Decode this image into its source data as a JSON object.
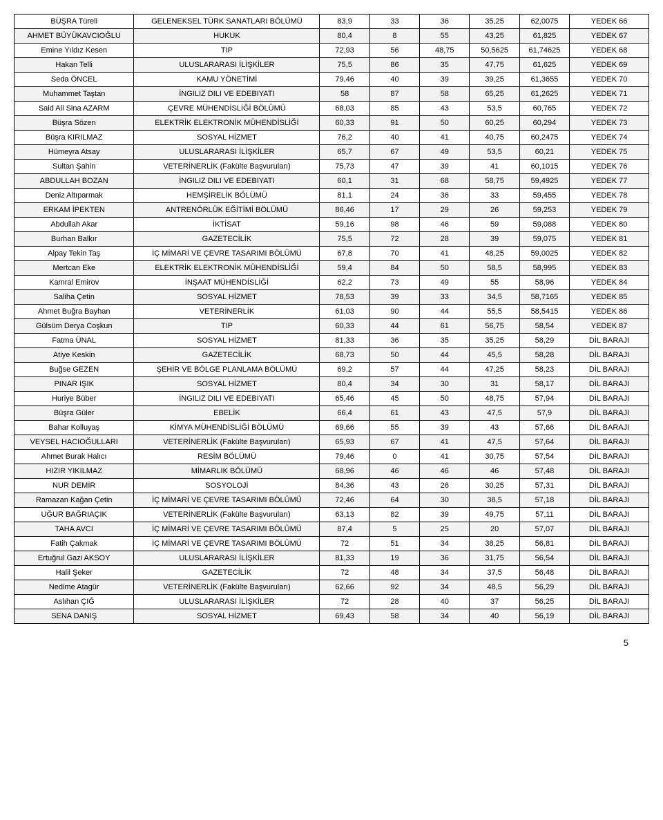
{
  "pageNumber": "5",
  "columns": [
    "name",
    "dept",
    "c1",
    "c2",
    "c3",
    "c4",
    "c5",
    "status"
  ],
  "rows": [
    {
      "name": "BÜŞRA Türeli",
      "dept": "GELENEKSEL TÜRK SANATLARI BÖLÜMÜ",
      "c1": "83,9",
      "c2": "33",
      "c3": "36",
      "c4": "35,25",
      "c5": "62,0075",
      "status": "YEDEK 66"
    },
    {
      "name": "AHMET BÜYÜKAVCIOĞLU",
      "dept": "HUKUK",
      "c1": "80,4",
      "c2": "8",
      "c3": "55",
      "c4": "43,25",
      "c5": "61,825",
      "status": "YEDEK 67"
    },
    {
      "name": "Emine Yıldız Kesen",
      "dept": "TIP",
      "c1": "72,93",
      "c2": "56",
      "c3": "48,75",
      "c4": "50,5625",
      "c5": "61,74625",
      "status": "YEDEK 68"
    },
    {
      "name": "Hakan Telli",
      "dept": "ULUSLARARASI İLİŞKİLER",
      "c1": "75,5",
      "c2": "86",
      "c3": "35",
      "c4": "47,75",
      "c5": "61,625",
      "status": "YEDEK 69"
    },
    {
      "name": "Seda ÖNCEL",
      "dept": "KAMU YÖNETİMİ",
      "c1": "79,46",
      "c2": "40",
      "c3": "39",
      "c4": "39,25",
      "c5": "61,3655",
      "status": "YEDEK 70"
    },
    {
      "name": "Muhammet Taştan",
      "dept": "İNGILIZ DILI VE EDEBIYATI",
      "c1": "58",
      "c2": "87",
      "c3": "58",
      "c4": "65,25",
      "c5": "61,2625",
      "status": "YEDEK 71"
    },
    {
      "name": "Said Ali Sina  AZARM",
      "dept": "ÇEVRE MÜHENDİSLİĞİ BÖLÜMÜ",
      "c1": "68,03",
      "c2": "85",
      "c3": "43",
      "c4": "53,5",
      "c5": "60,765",
      "status": "YEDEK 72"
    },
    {
      "name": "Büşra Sözen",
      "dept": "ELEKTRİK ELEKTRONİK MÜHENDİSLİĞİ",
      "c1": "60,33",
      "c2": "91",
      "c3": "50",
      "c4": "60,25",
      "c5": "60,294",
      "status": "YEDEK 73"
    },
    {
      "name": "Büşra KIRILMAZ",
      "dept": "SOSYAL HİZMET",
      "c1": "76,2",
      "c2": "40",
      "c3": "41",
      "c4": "40,75",
      "c5": "60,2475",
      "status": "YEDEK 74"
    },
    {
      "name": "Hümeyra Atsay",
      "dept": "ULUSLARARASI İLİŞKİLER",
      "c1": "65,7",
      "c2": "67",
      "c3": "49",
      "c4": "53,5",
      "c5": "60,21",
      "status": "YEDEK 75"
    },
    {
      "name": "Sultan Şahin",
      "dept": "VETERİNERLİK (Fakülte Başvuruları)",
      "c1": "75,73",
      "c2": "47",
      "c3": "39",
      "c4": "41",
      "c5": "60,1015",
      "status": "YEDEK 76"
    },
    {
      "name": "ABDULLAH BOZAN",
      "dept": "İNGILIZ DILI VE EDEBIYATI",
      "c1": "60,1",
      "c2": "31",
      "c3": "68",
      "c4": "58,75",
      "c5": "59,4925",
      "status": "YEDEK 77"
    },
    {
      "name": "Deniz Altıparmak",
      "dept": "HEMŞİRELİK BÖLÜMÜ",
      "c1": "81,1",
      "c2": "24",
      "c3": "36",
      "c4": "33",
      "c5": "59,455",
      "status": "YEDEK 78"
    },
    {
      "name": "ERKAM İPEKTEN",
      "dept": "ANTRENÖRLÜK EĞİTİMİ BÖLÜMÜ",
      "c1": "86,46",
      "c2": "17",
      "c3": "29",
      "c4": "26",
      "c5": "59,253",
      "status": "YEDEK 79"
    },
    {
      "name": "Abdullah Akar",
      "dept": "İKTİSAT",
      "c1": "59,16",
      "c2": "98",
      "c3": "46",
      "c4": "59",
      "c5": "59,088",
      "status": "YEDEK 80"
    },
    {
      "name": "Burhan Balkır",
      "dept": "GAZETECİLİK",
      "c1": "75,5",
      "c2": "72",
      "c3": "28",
      "c4": "39",
      "c5": "59,075",
      "status": "YEDEK 81"
    },
    {
      "name": "Alpay Tekin Taş",
      "dept": "İÇ MİMARİ VE ÇEVRE TASARIMI BÖLÜMÜ",
      "c1": "67,8",
      "c2": "70",
      "c3": "41",
      "c4": "48,25",
      "c5": "59,0025",
      "status": "YEDEK 82"
    },
    {
      "name": "Mertcan Eke",
      "dept": "ELEKTRİK ELEKTRONİK MÜHENDİSLİĞİ",
      "c1": "59,4",
      "c2": "84",
      "c3": "50",
      "c4": "58,5",
      "c5": "58,995",
      "status": "YEDEK 83"
    },
    {
      "name": "Kamral Emirov",
      "dept": "İNŞAAT MÜHENDİSLİĞİ",
      "c1": "62,2",
      "c2": "73",
      "c3": "49",
      "c4": "55",
      "c5": "58,96",
      "status": "YEDEK 84"
    },
    {
      "name": "Saliha Çetin",
      "dept": "SOSYAL HİZMET",
      "c1": "78,53",
      "c2": "39",
      "c3": "33",
      "c4": "34,5",
      "c5": "58,7165",
      "status": "YEDEK 85"
    },
    {
      "name": "Ahmet Buğra Bayhan",
      "dept": "VETERİNERLİK",
      "c1": "61,03",
      "c2": "90",
      "c3": "44",
      "c4": "55,5",
      "c5": "58,5415",
      "status": "YEDEK 86"
    },
    {
      "name": "Gülsüm Derya Coşkun",
      "dept": "TIP",
      "c1": "60,33",
      "c2": "44",
      "c3": "61",
      "c4": "56,75",
      "c5": "58,54",
      "status": "YEDEK 87"
    },
    {
      "name": "Fatma ÜNAL",
      "dept": "SOSYAL HİZMET",
      "c1": "81,33",
      "c2": "36",
      "c3": "35",
      "c4": "35,25",
      "c5": "58,29",
      "status": "DİL BARAJI"
    },
    {
      "name": "Atiye Keskin",
      "dept": "GAZETECİLİK",
      "c1": "68,73",
      "c2": "50",
      "c3": "44",
      "c4": "45,5",
      "c5": "58,28",
      "status": "DİL BARAJI"
    },
    {
      "name": "Buğse GEZEN",
      "dept": "ŞEHİR VE BÖLGE PLANLAMA BÖLÜMÜ",
      "c1": "69,2",
      "c2": "57",
      "c3": "44",
      "c4": "47,25",
      "c5": "58,23",
      "status": "DİL BARAJI"
    },
    {
      "name": "PINAR IŞIK",
      "dept": "SOSYAL HİZMET",
      "c1": "80,4",
      "c2": "34",
      "c3": "30",
      "c4": "31",
      "c5": "58,17",
      "status": "DİL BARAJI"
    },
    {
      "name": "Huriye  Büber",
      "dept": "İNGILIZ DILI VE EDEBIYATI",
      "c1": "65,46",
      "c2": "45",
      "c3": "50",
      "c4": "48,75",
      "c5": "57,94",
      "status": "DİL BARAJI"
    },
    {
      "name": "Büşra  Güler",
      "dept": "EBELİK",
      "c1": "66,4",
      "c2": "61",
      "c3": "43",
      "c4": "47,5",
      "c5": "57,9",
      "status": "DİL BARAJI"
    },
    {
      "name": "Bahar  Kolluyaş",
      "dept": "KİMYA MÜHENDİSLİĞİ BÖLÜMÜ",
      "c1": "69,66",
      "c2": "55",
      "c3": "39",
      "c4": "43",
      "c5": "57,66",
      "status": "DİL BARAJI"
    },
    {
      "name": "VEYSEL HACIOĞULLARI",
      "dept": "VETERİNERLİK (Fakülte Başvuruları)",
      "c1": "65,93",
      "c2": "67",
      "c3": "41",
      "c4": "47,5",
      "c5": "57,64",
      "status": "DİL BARAJI"
    },
    {
      "name": "Ahmet Burak  Halıcı",
      "dept": "RESİM BÖLÜMÜ",
      "c1": "79,46",
      "c2": "0",
      "c3": "41",
      "c4": "30,75",
      "c5": "57,54",
      "status": "DİL BARAJI"
    },
    {
      "name": "HIZIR YIKILMAZ",
      "dept": "MİMARLIK BÖLÜMÜ",
      "c1": "68,96",
      "c2": "46",
      "c3": "46",
      "c4": "46",
      "c5": "57,48",
      "status": "DİL BARAJI"
    },
    {
      "name": "NUR DEMİR",
      "dept": "SOSYOLOJİ",
      "c1": "84,36",
      "c2": "43",
      "c3": "26",
      "c4": "30,25",
      "c5": "57,31",
      "status": "DİL BARAJI"
    },
    {
      "name": "Ramazan Kağan  Çetin",
      "dept": "İÇ MİMARİ VE ÇEVRE TASARIMI BÖLÜMÜ",
      "c1": "72,46",
      "c2": "64",
      "c3": "30",
      "c4": "38,5",
      "c5": "57,18",
      "status": "DİL BARAJI"
    },
    {
      "name": "UĞUR BAĞRIAÇIK",
      "dept": "VETERİNERLİK (Fakülte Başvuruları)",
      "c1": "63,13",
      "c2": "82",
      "c3": "39",
      "c4": "49,75",
      "c5": "57,11",
      "status": "DİL BARAJI"
    },
    {
      "name": "TAHA AVCI",
      "dept": "İÇ MİMARİ VE ÇEVRE TASARIMI BÖLÜMÜ",
      "c1": "87,4",
      "c2": "5",
      "c3": "25",
      "c4": "20",
      "c5": "57,07",
      "status": "DİL BARAJI"
    },
    {
      "name": "Fatih Çakmak",
      "dept": "İÇ MİMARİ VE ÇEVRE TASARIMI BÖLÜMÜ",
      "c1": "72",
      "c2": "51",
      "c3": "34",
      "c4": "38,25",
      "c5": "56,81",
      "status": "DİL BARAJI"
    },
    {
      "name": "Ertuğrul Gazi AKSOY",
      "dept": "ULUSLARARASI İLİŞKİLER",
      "c1": "81,33",
      "c2": "19",
      "c3": "36",
      "c4": "31,75",
      "c5": "56,54",
      "status": "DİL BARAJI"
    },
    {
      "name": "Halil  Şeker",
      "dept": "GAZETECİLİK",
      "c1": "72",
      "c2": "48",
      "c3": "34",
      "c4": "37,5",
      "c5": "56,48",
      "status": "DİL BARAJI"
    },
    {
      "name": "Nedime  Atagür",
      "dept": "VETERİNERLİK (Fakülte Başvuruları)",
      "c1": "62,66",
      "c2": "92",
      "c3": "34",
      "c4": "48,5",
      "c5": "56,29",
      "status": "DİL BARAJI"
    },
    {
      "name": "Aslıhan ÇIĞ",
      "dept": "ULUSLARARASI İLİŞKİLER",
      "c1": "72",
      "c2": "28",
      "c3": "40",
      "c4": "37",
      "c5": "56,25",
      "status": "DİL BARAJI"
    },
    {
      "name": "SENA DANIŞ",
      "dept": "SOSYAL HİZMET",
      "c1": "69,43",
      "c2": "58",
      "c3": "34",
      "c4": "40",
      "c5": "56,19",
      "status": "DİL BARAJI"
    }
  ]
}
